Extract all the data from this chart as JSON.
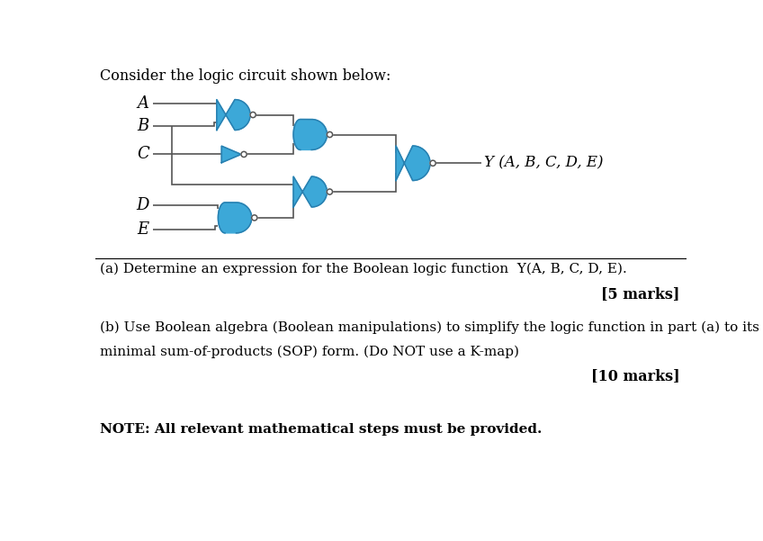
{
  "title_text": "Consider the logic circuit shown below:",
  "gate_color": "#3ca8d8",
  "gate_edge": "#2980b0",
  "wire_color": "#555555",
  "bg_color": "#ffffff",
  "text_color": "#000000",
  "label_a": "A",
  "label_b": "B",
  "label_c": "C",
  "label_d": "D",
  "label_e": "E",
  "output_label": "Y (A, B, C, D, E)",
  "part_a_text": "(a) Determine an expression for the Boolean logic function  Y(A, B, C, D, E).",
  "marks_5": "[5 marks]",
  "part_b_line1": "(b) Use Boolean algebra (Boolean manipulations) to simplify the logic function in part (a) to its",
  "part_b_line2": "minimal sum-of-products (SOP) form. (Do NOT use a K-map)",
  "marks_10": "[10 marks]",
  "note_text": "NOTE: All relevant mathematical steps must be provided."
}
